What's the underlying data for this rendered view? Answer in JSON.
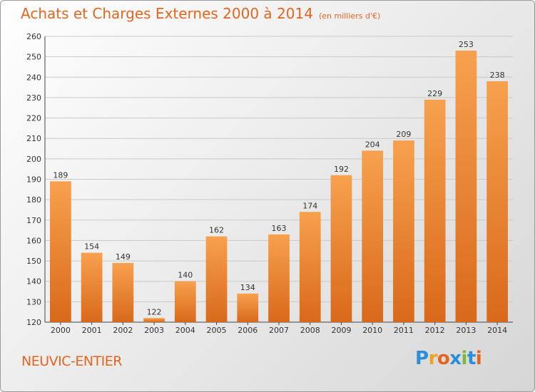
{
  "chart_data": {
    "type": "bar",
    "title": "Achats et Charges Externes 2000 à 2014",
    "subtitle": "(en milliers d'€)",
    "categories": [
      "2000",
      "2001",
      "2002",
      "2003",
      "2004",
      "2005",
      "2006",
      "2007",
      "2008",
      "2009",
      "2010",
      "2011",
      "2012",
      "2013",
      "2014"
    ],
    "values": [
      189,
      154,
      149,
      122,
      140,
      162,
      134,
      163,
      174,
      192,
      204,
      209,
      229,
      253,
      238
    ],
    "ylim": [
      120,
      260
    ],
    "yticks": [
      120,
      130,
      140,
      150,
      160,
      170,
      180,
      190,
      200,
      210,
      220,
      230,
      240,
      250,
      260
    ],
    "xlabel": "",
    "ylabel": "",
    "grid": true,
    "bar_color": "#f0903a"
  },
  "footer": {
    "location": "NEUVIC-ENTIER",
    "logo": [
      "P",
      "r",
      "o",
      "x",
      "i",
      "t",
      "i"
    ]
  }
}
